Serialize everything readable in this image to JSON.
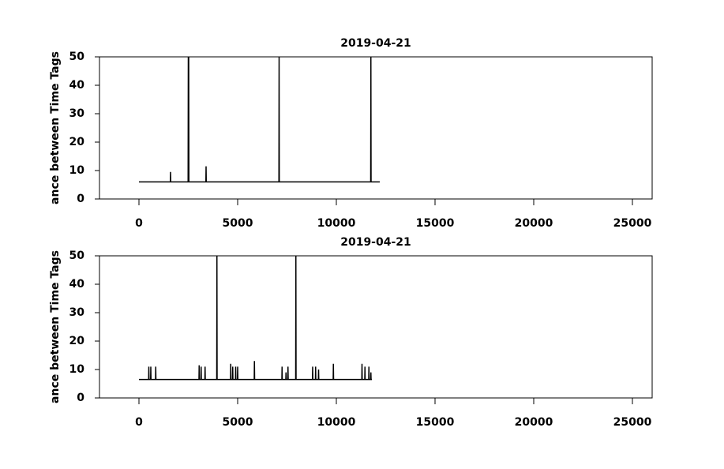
{
  "chart_data": [
    {
      "type": "line",
      "title": "2019-04-21",
      "y_label": "ance between Time Tags",
      "x": [
        0,
        1590,
        1600,
        1610,
        2490,
        2500,
        2510,
        2520,
        2530,
        3390,
        3400,
        3410,
        7090,
        7100,
        7110,
        11740,
        11750,
        11760,
        12200
      ],
      "series": [
        {
          "color": "#000000",
          "values": [
            6,
            6,
            9.5,
            6,
            6,
            50,
            6,
            50,
            6,
            6,
            11.5,
            6,
            6,
            50,
            6,
            6,
            50,
            6,
            6
          ]
        }
      ],
      "xlim": [
        -2000,
        26000
      ],
      "xticks": [
        0,
        5000,
        10000,
        15000,
        20000,
        25000
      ],
      "ylim": [
        0,
        50
      ],
      "yticks": [
        0,
        10,
        20,
        30,
        40,
        50
      ]
    },
    {
      "type": "line",
      "title": "2019-04-21",
      "y_label": "ance between Time Tags",
      "x": [
        0,
        490,
        500,
        510,
        590,
        600,
        610,
        840,
        850,
        860,
        3040,
        3050,
        3060,
        3140,
        3150,
        3160,
        3340,
        3350,
        3360,
        3940,
        3950,
        3960,
        4640,
        4650,
        4660,
        4740,
        4750,
        4760,
        4890,
        4900,
        4910,
        4990,
        5000,
        5010,
        5840,
        5850,
        5860,
        7240,
        7250,
        7260,
        7440,
        7450,
        7460,
        7540,
        7550,
        7560,
        7940,
        7950,
        7960,
        8790,
        8800,
        8810,
        8940,
        8950,
        8960,
        9090,
        9100,
        9110,
        9840,
        9850,
        9860,
        11290,
        11300,
        11310,
        11440,
        11450,
        11460,
        11640,
        11650,
        11660,
        11740,
        11750,
        11760,
        11800
      ],
      "series": [
        {
          "color": "#000000",
          "values": [
            6.5,
            6.5,
            11,
            6.5,
            6.5,
            11,
            6.5,
            6.5,
            11,
            6.5,
            6.5,
            11.5,
            6.5,
            6.5,
            11,
            6.5,
            6.5,
            11,
            6.5,
            6.5,
            50,
            6.5,
            6.5,
            12,
            6.5,
            6.5,
            11,
            6.5,
            6.5,
            11,
            6.5,
            6.5,
            11,
            6.5,
            6.5,
            13,
            6.5,
            6.5,
            11,
            6.5,
            6.5,
            9,
            6.5,
            6.5,
            11,
            6.5,
            6.5,
            50,
            6.5,
            6.5,
            11,
            6.5,
            6.5,
            11,
            6.5,
            6.5,
            10,
            6.5,
            6.5,
            12,
            6.5,
            6.5,
            12,
            6.5,
            6.5,
            11,
            6.5,
            6.5,
            11,
            6.5,
            6.5,
            9,
            6.5,
            6.5
          ]
        }
      ],
      "xlim": [
        -2000,
        26000
      ],
      "xticks": [
        0,
        5000,
        10000,
        15000,
        20000,
        25000
      ],
      "ylim": [
        0,
        50
      ],
      "yticks": [
        0,
        10,
        20,
        30,
        40,
        50
      ]
    }
  ]
}
